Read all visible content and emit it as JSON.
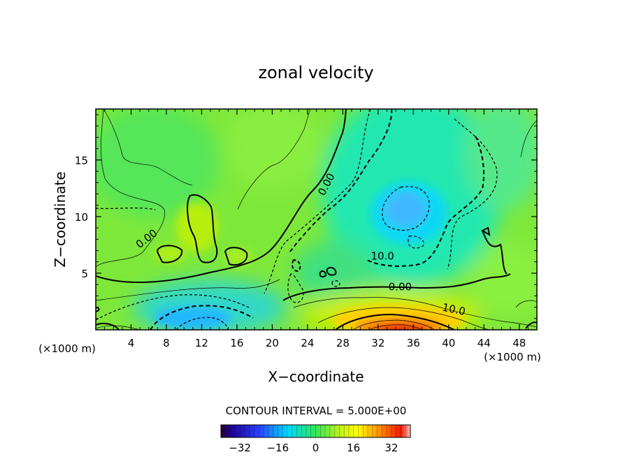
{
  "chart_data": {
    "type": "heatmap",
    "title": "zonal velocity",
    "xlabel": "X−coordinate",
    "ylabel": "Z−coordinate",
    "x_unit_label": "(×1000 m)",
    "z_unit_label": "(×1000 m)",
    "xlim": [
      0,
      50
    ],
    "ylim": [
      0,
      19.5
    ],
    "x_ticks": [
      4,
      8,
      12,
      16,
      20,
      24,
      28,
      32,
      36,
      40,
      44,
      48
    ],
    "y_ticks": [
      5,
      10,
      15
    ],
    "contour_interval_label": "CONTOUR INTERVAL = 5.000E+00",
    "contour_labels": [
      {
        "text": "0.00",
        "x": 26.5,
        "z": 12.7
      },
      {
        "text": "0.00",
        "x": 6.0,
        "z": 7.8
      },
      {
        "text": "0.00",
        "x": 34.5,
        "z": 3.5
      },
      {
        "text": "10.0",
        "x": 32.5,
        "z": 6.2
      },
      {
        "text": "10.0",
        "x": 40.5,
        "z": 1.5
      }
    ],
    "colorbar": {
      "range": [
        -40,
        40
      ],
      "ticks": [
        -32,
        -16,
        0,
        16,
        32
      ],
      "tick_labels": [
        "−32",
        "−16",
        "0",
        "16",
        "32"
      ]
    },
    "features": [
      {
        "kind": "max",
        "x": 35.5,
        "z": 0.5,
        "value": 35
      },
      {
        "kind": "min",
        "x": 11.5,
        "z": 1.0,
        "value": -15
      },
      {
        "kind": "min",
        "x": 35.5,
        "z": 10.5,
        "value": -14
      },
      {
        "kind": "max",
        "x": 12.5,
        "z": 9.5,
        "value": 5
      }
    ]
  }
}
